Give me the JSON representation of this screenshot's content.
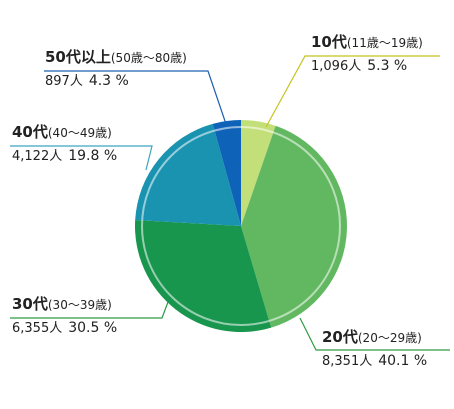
{
  "chart_data": {
    "type": "pie",
    "title": "",
    "unit": "人",
    "slices": [
      {
        "label": "10代",
        "range": "(11歳〜19歳)",
        "count": "1,096人",
        "percent": "5.3 %",
        "value": 5.3,
        "color": "#c3df7a"
      },
      {
        "label": "20代",
        "range": "(20〜29歳)",
        "count": "8,351人",
        "percent": "40.1 %",
        "value": 40.1,
        "color": "#62b860"
      },
      {
        "label": "30代",
        "range": "(30〜39歳)",
        "count": "6,355人",
        "percent": "30.5 %",
        "value": 30.5,
        "color": "#18964e"
      },
      {
        "label": "40代",
        "range": "(40〜49歳)",
        "count": "4,122人",
        "percent": "19.8 %",
        "value": 19.8,
        "color": "#1a93b0"
      },
      {
        "label": "50代以上",
        "range": "(50歳〜80歳)",
        "count": "897人",
        "percent": "4.3 %",
        "value": 4.3,
        "color": "#0e62b8"
      }
    ],
    "leader_colors": [
      "#c3c41e",
      "#2e9a45",
      "#2e9a45",
      "#3aa6bf",
      "#1d5fb0"
    ]
  }
}
